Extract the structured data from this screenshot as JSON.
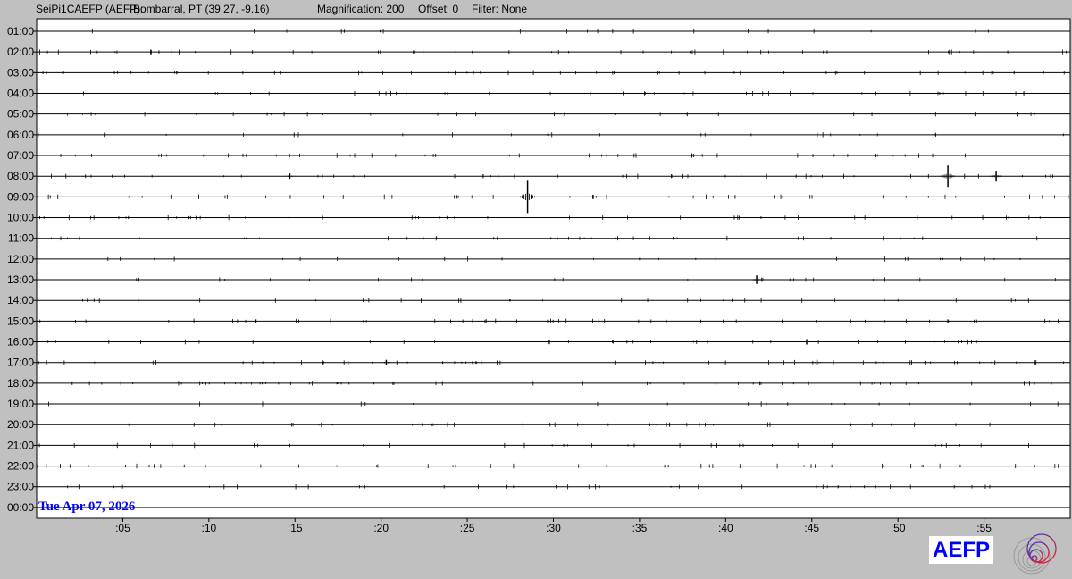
{
  "header": {
    "station": "SeiPi1CAEFP (AEFP):",
    "location": "Bombarral, PT (39.27, -9.16)",
    "magnification": "Magnification: 200",
    "offset": "Offset: 0",
    "filter": "Filter: None"
  },
  "logo": {
    "text": "AEFP"
  },
  "colors": {
    "trace": "#000000",
    "current_line": "#0000ff",
    "date_label": "#0000ff",
    "background": "#c0c0c0",
    "plot_bg": "#ffffff"
  },
  "chart_data": {
    "type": "line",
    "title": "",
    "date_label": "Tue Apr 07, 2026",
    "row_labels": [
      "01:00",
      "02:00",
      "03:00",
      "04:00",
      "05:00",
      "06:00",
      "07:00",
      "08:00",
      "09:00",
      "10:00",
      "11:00",
      "12:00",
      "13:00",
      "14:00",
      "15:00",
      "16:00",
      "17:00",
      "18:00",
      "19:00",
      "20:00",
      "21:00",
      "22:00",
      "23:00",
      "00:00"
    ],
    "x_tick_labels": [
      ":05",
      ":10",
      ":15",
      ":20",
      ":25",
      ":30",
      ":35",
      ":40",
      ":45",
      ":50",
      ":55"
    ],
    "x_range_minutes": [
      0,
      60
    ],
    "events": [
      {
        "row": "08:00",
        "minute": 52.9,
        "amplitude": 1.0
      },
      {
        "row": "08:00",
        "minute": 55.7,
        "amplitude": 0.5
      },
      {
        "row": "09:00",
        "minute": 28.5,
        "amplitude": 1.5
      },
      {
        "row": "13:00",
        "minute": 41.8,
        "amplitude": 0.4
      },
      {
        "row": "17:00",
        "minute": 20.3,
        "amplitude": 0.25
      },
      {
        "row": "17:00",
        "minute": 45.3,
        "amplitude": 0.25
      },
      {
        "row": "16:00",
        "minute": 44.7,
        "amplitude": 0.25
      },
      {
        "row": "08:00",
        "minute": 14.7,
        "amplitude": 0.25
      },
      {
        "row": "09:00",
        "minute": 32.3,
        "amplitude": 0.2
      }
    ]
  }
}
